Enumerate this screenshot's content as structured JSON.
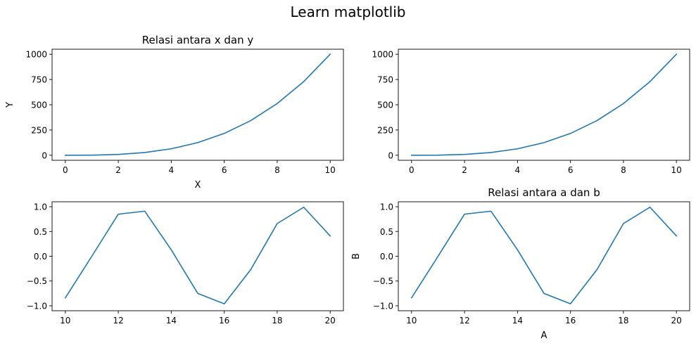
{
  "figure": {
    "suptitle": "Learn matplotlib"
  },
  "chart_data": [
    {
      "type": "line",
      "title": "Relasi antara x dan y",
      "xlabel": "X",
      "ylabel": "Y",
      "xlim": [
        -0.5,
        10.5
      ],
      "ylim": [
        -50,
        1050
      ],
      "xticks": [
        0,
        2,
        4,
        6,
        8,
        10
      ],
      "yticks": [
        0,
        250,
        500,
        750,
        1000
      ],
      "color": "#1f77b4",
      "grid": false,
      "series": [
        {
          "x": [
            0,
            1,
            2,
            3,
            4,
            5,
            6,
            7,
            8,
            9,
            10
          ],
          "values": [
            0,
            1,
            8,
            27,
            64,
            125,
            216,
            343,
            512,
            729,
            1000
          ]
        }
      ]
    },
    {
      "type": "line",
      "title": "",
      "xlabel": "",
      "ylabel": "",
      "xlim": [
        -0.5,
        10.5
      ],
      "ylim": [
        -50,
        1050
      ],
      "xticks": [
        0,
        2,
        4,
        6,
        8,
        10
      ],
      "yticks": [
        0,
        250,
        500,
        750,
        1000
      ],
      "color": "#1f77b4",
      "grid": false,
      "series": [
        {
          "x": [
            0,
            1,
            2,
            3,
            4,
            5,
            6,
            7,
            8,
            9,
            10
          ],
          "values": [
            0,
            1,
            8,
            27,
            64,
            125,
            216,
            343,
            512,
            729,
            1000
          ]
        }
      ]
    },
    {
      "type": "line",
      "title": "",
      "xlabel": "",
      "ylabel": "",
      "xlim": [
        9.5,
        20.5
      ],
      "ylim": [
        -1.1,
        1.1
      ],
      "xticks": [
        10,
        12,
        14,
        16,
        18,
        20
      ],
      "yticks": [
        -1.0,
        -0.5,
        0.0,
        0.5,
        1.0
      ],
      "ytick_labels": [
        "−1.0",
        "−0.5",
        "0.0",
        "0.5",
        "1.0"
      ],
      "color": "#1f77b4",
      "grid": false,
      "series": [
        {
          "x": [
            10,
            11,
            12,
            13,
            14,
            15,
            16,
            17,
            18,
            19,
            20
          ],
          "values": [
            -0.84,
            0.0,
            0.85,
            0.91,
            0.13,
            -0.75,
            -0.96,
            -0.27,
            0.66,
            0.99,
            0.41
          ]
        }
      ]
    },
    {
      "type": "line",
      "title": "Relasi antara a dan b",
      "xlabel": "A",
      "ylabel": "B",
      "xlim": [
        9.5,
        20.5
      ],
      "ylim": [
        -1.1,
        1.1
      ],
      "xticks": [
        10,
        12,
        14,
        16,
        18,
        20
      ],
      "yticks": [
        -1.0,
        -0.5,
        0.0,
        0.5,
        1.0
      ],
      "ytick_labels": [
        "−1.0",
        "−0.5",
        "0.0",
        "0.5",
        "1.0"
      ],
      "color": "#1f77b4",
      "grid": false,
      "series": [
        {
          "x": [
            10,
            11,
            12,
            13,
            14,
            15,
            16,
            17,
            18,
            19,
            20
          ],
          "values": [
            -0.84,
            0.0,
            0.85,
            0.91,
            0.13,
            -0.75,
            -0.96,
            -0.27,
            0.66,
            0.99,
            0.41
          ]
        }
      ]
    }
  ]
}
